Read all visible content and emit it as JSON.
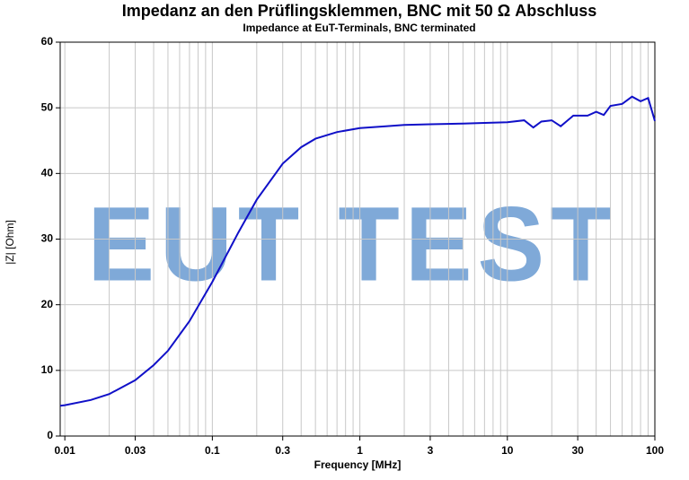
{
  "chart_data": {
    "type": "line",
    "title": "Impedanz an den Prüflingsklemmen, BNC mit 50 Ω Abschluss",
    "subtitle": "Impedance at EuT-Terminals, BNC terminated",
    "watermark": "EUT TEST",
    "x_label": "Frequency [MHz]",
    "y_label": "|Z| [Ohm]",
    "x_scale": "log",
    "grid": true,
    "xlim": [
      0.0093,
      100
    ],
    "ylim": [
      0,
      60
    ],
    "xticks": [
      0.01,
      0.03,
      0.1,
      0.3,
      1,
      3,
      10,
      30,
      100
    ],
    "xgrid_minor": [
      0.02,
      0.04,
      0.05,
      0.06,
      0.07,
      0.08,
      0.09,
      0.2,
      0.4,
      0.5,
      0.6,
      0.7,
      0.8,
      0.9,
      2,
      4,
      5,
      6,
      7,
      8,
      9,
      20,
      40,
      50,
      60,
      70,
      80,
      90
    ],
    "yticks": [
      0,
      10,
      20,
      30,
      40,
      50,
      60
    ],
    "series": [
      {
        "name": "|Z|",
        "color": "#1010c8",
        "x": [
          0.0093,
          0.01,
          0.015,
          0.02,
          0.03,
          0.04,
          0.05,
          0.07,
          0.1,
          0.15,
          0.2,
          0.3,
          0.4,
          0.5,
          0.7,
          1,
          1.5,
          2,
          3,
          5,
          7,
          10,
          13,
          15,
          17,
          20,
          23,
          28,
          35,
          40,
          45,
          50,
          60,
          70,
          80,
          90,
          100
        ],
        "values": [
          4.6,
          4.7,
          5.5,
          6.4,
          8.5,
          10.8,
          13,
          17.5,
          23.5,
          31,
          36,
          41.5,
          44,
          45.3,
          46.3,
          46.9,
          47.2,
          47.4,
          47.5,
          47.6,
          47.7,
          47.8,
          48.1,
          47,
          47.9,
          48.1,
          47.2,
          48.8,
          48.8,
          49.4,
          48.9,
          50.3,
          50.6,
          51.7,
          51,
          51.5,
          48
        ]
      }
    ]
  }
}
